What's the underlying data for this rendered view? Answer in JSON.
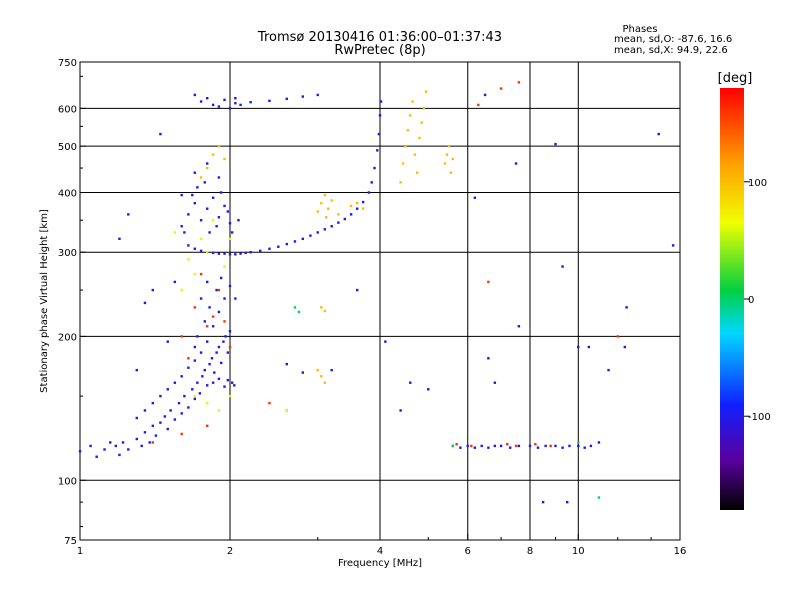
{
  "chart_data": {
    "type": "scatter",
    "title": "Tromsø 20130416 01:36:00–01:37:43",
    "subtitle": "RwPretec (8p)",
    "stats": {
      "heading": "Phases",
      "line_o": "mean, sd,O: -87.6, 16.6",
      "line_x": "mean, sd,X: 94.9, 22.6"
    },
    "xlabel": "Frequency [MHz]",
    "ylabel": "Stationary phase Virtual Height [km]",
    "x_scale": "log",
    "y_scale": "log",
    "xlim": [
      1,
      16
    ],
    "ylim": [
      75,
      750
    ],
    "x_ticks": [
      {
        "v": 1,
        "label": "1"
      },
      {
        "v": 2,
        "label": "2"
      },
      {
        "v": 4,
        "label": "4"
      },
      {
        "v": 6,
        "label": "6"
      },
      {
        "v": 8,
        "label": "8"
      },
      {
        "v": 10,
        "label": "10"
      },
      {
        "v": 16,
        "label": "16"
      }
    ],
    "y_ticks": [
      {
        "v": 75,
        "label": "75"
      },
      {
        "v": 100,
        "label": "100"
      },
      {
        "v": 200,
        "label": "200"
      },
      {
        "v": 300,
        "label": "300"
      },
      {
        "v": 400,
        "label": "400"
      },
      {
        "v": 500,
        "label": "500"
      },
      {
        "v": 600,
        "label": "600"
      },
      {
        "v": 750,
        "label": "750"
      }
    ],
    "x_grid": [
      2,
      4,
      6,
      8,
      10
    ],
    "y_grid": [
      100,
      200,
      300,
      400,
      500,
      600
    ],
    "grid": true,
    "colorbar": {
      "label": "[deg]",
      "range": [
        -180,
        180
      ],
      "ticks": [
        {
          "v": 100,
          "label": "100"
        },
        {
          "v": 0,
          "label": "0"
        },
        {
          "v": -100,
          "label": "-100"
        }
      ]
    },
    "series": [
      {
        "color_value": -100,
        "points": [
          [
            1.0,
            115
          ],
          [
            1.05,
            118
          ],
          [
            1.08,
            112
          ],
          [
            1.12,
            116
          ],
          [
            1.15,
            120
          ],
          [
            1.18,
            118
          ],
          [
            1.2,
            113
          ],
          [
            1.22,
            120
          ],
          [
            1.25,
            116
          ],
          [
            1.3,
            122
          ],
          [
            1.33,
            118
          ],
          [
            1.35,
            126
          ],
          [
            1.38,
            120
          ],
          [
            1.4,
            130
          ],
          [
            1.42,
            124
          ],
          [
            1.45,
            132
          ],
          [
            1.48,
            136
          ],
          [
            1.5,
            128
          ],
          [
            1.52,
            140
          ],
          [
            1.55,
            134
          ],
          [
            1.58,
            145
          ],
          [
            1.6,
            138
          ],
          [
            1.62,
            150
          ],
          [
            1.65,
            142
          ],
          [
            1.68,
            155
          ],
          [
            1.7,
            148
          ],
          [
            1.72,
            160
          ],
          [
            1.74,
            152
          ],
          [
            1.76,
            165
          ],
          [
            1.78,
            170
          ],
          [
            1.8,
            158
          ],
          [
            1.82,
            175
          ],
          [
            1.84,
            180
          ],
          [
            1.86,
            168
          ],
          [
            1.88,
            185
          ],
          [
            1.9,
            190
          ],
          [
            1.92,
            176
          ],
          [
            1.94,
            195
          ],
          [
            1.96,
            200
          ],
          [
            1.98,
            185
          ],
          [
            2.0,
            205
          ],
          [
            2.02,
            160
          ],
          [
            2.04,
            158
          ],
          [
            1.98,
            162
          ],
          [
            1.95,
            157
          ],
          [
            1.9,
            163
          ],
          [
            1.85,
            160
          ],
          [
            1.3,
            135
          ],
          [
            1.35,
            140
          ],
          [
            1.4,
            145
          ],
          [
            1.45,
            150
          ],
          [
            1.5,
            155
          ],
          [
            1.55,
            160
          ],
          [
            1.6,
            165
          ],
          [
            1.65,
            172
          ],
          [
            1.7,
            178
          ],
          [
            1.75,
            185
          ],
          [
            1.8,
            195
          ],
          [
            1.85,
            210
          ],
          [
            1.9,
            225
          ],
          [
            1.95,
            240
          ],
          [
            2.0,
            255
          ],
          [
            2.05,
            240
          ],
          [
            1.72,
            200
          ],
          [
            1.78,
            215
          ],
          [
            1.82,
            230
          ],
          [
            1.88,
            250
          ],
          [
            1.92,
            265
          ],
          [
            1.75,
            240
          ],
          [
            1.8,
            260
          ],
          [
            1.7,
            190
          ],
          [
            1.65,
            310
          ],
          [
            1.7,
            305
          ],
          [
            1.75,
            302
          ],
          [
            1.8,
            300
          ],
          [
            1.85,
            299
          ],
          [
            1.9,
            298
          ],
          [
            1.95,
            298
          ],
          [
            2.0,
            297
          ],
          [
            2.05,
            297
          ],
          [
            2.1,
            298
          ],
          [
            2.15,
            299
          ],
          [
            2.2,
            300
          ],
          [
            2.3,
            302
          ],
          [
            2.4,
            305
          ],
          [
            2.5,
            308
          ],
          [
            2.6,
            312
          ],
          [
            2.7,
            316
          ],
          [
            2.8,
            320
          ],
          [
            2.9,
            325
          ],
          [
            3.0,
            330
          ],
          [
            3.1,
            335
          ],
          [
            3.2,
            340
          ],
          [
            3.3,
            346
          ],
          [
            3.4,
            352
          ],
          [
            3.5,
            360
          ],
          [
            3.6,
            370
          ],
          [
            3.7,
            382
          ],
          [
            3.8,
            400
          ],
          [
            3.85,
            420
          ],
          [
            3.9,
            450
          ],
          [
            3.95,
            490
          ],
          [
            3.98,
            530
          ],
          [
            4.0,
            580
          ],
          [
            4.02,
            620
          ],
          [
            1.6,
            340
          ],
          [
            1.65,
            360
          ],
          [
            1.7,
            380
          ],
          [
            1.75,
            350
          ],
          [
            1.8,
            370
          ],
          [
            1.85,
            390
          ],
          [
            1.9,
            355
          ],
          [
            1.95,
            375
          ],
          [
            2.0,
            345
          ],
          [
            1.62,
            330
          ],
          [
            1.68,
            395
          ],
          [
            1.72,
            410
          ],
          [
            1.78,
            420
          ],
          [
            1.82,
            330
          ],
          [
            1.88,
            340
          ],
          [
            1.92,
            400
          ],
          [
            1.98,
            365
          ],
          [
            2.02,
            330
          ],
          [
            2.08,
            350
          ],
          [
            1.7,
            440
          ],
          [
            1.8,
            460
          ],
          [
            1.9,
            430
          ],
          [
            1.7,
            640
          ],
          [
            1.75,
            620
          ],
          [
            1.8,
            630
          ],
          [
            1.85,
            610
          ],
          [
            1.9,
            605
          ],
          [
            1.95,
            625
          ],
          [
            2.0,
            600
          ],
          [
            2.05,
            615
          ],
          [
            2.1,
            610
          ],
          [
            2.2,
            618
          ],
          [
            2.4,
            622
          ],
          [
            2.6,
            628
          ],
          [
            2.8,
            635
          ],
          [
            3.0,
            640
          ],
          [
            2.05,
            630
          ],
          [
            5.6,
            118
          ],
          [
            5.8,
            117
          ],
          [
            6.0,
            118
          ],
          [
            6.2,
            117
          ],
          [
            6.4,
            118
          ],
          [
            6.6,
            117
          ],
          [
            6.8,
            118
          ],
          [
            7.0,
            118
          ],
          [
            7.3,
            117
          ],
          [
            7.6,
            118
          ],
          [
            8.0,
            118
          ],
          [
            8.3,
            117
          ],
          [
            8.6,
            118
          ],
          [
            9.0,
            118
          ],
          [
            9.3,
            117
          ],
          [
            9.6,
            118
          ],
          [
            10.0,
            118
          ],
          [
            10.3,
            117
          ],
          [
            10.6,
            118
          ],
          [
            11.0,
            120
          ]
        ]
      },
      {
        "color_value": 100,
        "points": [
          [
            3.0,
            365
          ],
          [
            3.05,
            380
          ],
          [
            3.1,
            395
          ],
          [
            3.12,
            355
          ],
          [
            3.15,
            370
          ],
          [
            3.2,
            385
          ],
          [
            3.3,
            360
          ],
          [
            3.5,
            375
          ],
          [
            3.6,
            380
          ],
          [
            3.7,
            370
          ],
          [
            4.4,
            420
          ],
          [
            4.45,
            460
          ],
          [
            4.5,
            500
          ],
          [
            4.55,
            540
          ],
          [
            4.6,
            580
          ],
          [
            4.65,
            620
          ],
          [
            4.7,
            480
          ],
          [
            4.75,
            440
          ],
          [
            4.8,
            520
          ],
          [
            4.85,
            560
          ],
          [
            4.9,
            600
          ],
          [
            4.95,
            650
          ],
          [
            5.4,
            460
          ],
          [
            5.45,
            480
          ],
          [
            5.5,
            500
          ],
          [
            5.55,
            440
          ],
          [
            5.6,
            470
          ],
          [
            1.8,
            450
          ],
          [
            1.85,
            480
          ],
          [
            1.9,
            500
          ],
          [
            1.95,
            470
          ],
          [
            1.75,
            430
          ],
          [
            3.05,
            230
          ],
          [
            3.1,
            226
          ],
          [
            3.0,
            170
          ],
          [
            3.05,
            165
          ],
          [
            3.1,
            160
          ]
        ]
      },
      {
        "color_value": 160,
        "points": [
          [
            1.6,
            200
          ],
          [
            1.7,
            230
          ],
          [
            1.8,
            210
          ],
          [
            1.9,
            250
          ],
          [
            2.0,
            190
          ],
          [
            1.75,
            270
          ],
          [
            1.85,
            220
          ],
          [
            1.65,
            180
          ],
          [
            1.95,
            215
          ],
          [
            1.4,
            120
          ],
          [
            1.6,
            125
          ],
          [
            1.8,
            130
          ],
          [
            2.4,
            145
          ],
          [
            2.6,
            140
          ],
          [
            5.7,
            119
          ],
          [
            6.1,
            118
          ],
          [
            7.2,
            119
          ],
          [
            7.5,
            118
          ],
          [
            8.2,
            119
          ],
          [
            8.8,
            118
          ],
          [
            6.6,
            260
          ],
          [
            7.0,
            660
          ],
          [
            6.3,
            610
          ],
          [
            7.6,
            680
          ],
          [
            12.0,
            200
          ]
        ]
      },
      {
        "color_value": 60,
        "points": [
          [
            1.55,
            330
          ],
          [
            1.65,
            290
          ],
          [
            1.75,
            320
          ],
          [
            1.85,
            350
          ],
          [
            1.95,
            280
          ],
          [
            1.7,
            270
          ],
          [
            1.8,
            300
          ],
          [
            1.6,
            250
          ],
          [
            2.0,
            320
          ],
          [
            1.9,
            140
          ],
          [
            2.0,
            150
          ],
          [
            1.7,
            150
          ],
          [
            1.8,
            145
          ],
          [
            2.6,
            140
          ]
        ]
      },
      {
        "color_value": 0,
        "points": [
          [
            2.7,
            230
          ],
          [
            2.75,
            225
          ],
          [
            5.6,
            118
          ],
          [
            11.0,
            92
          ],
          [
            10.0,
            120
          ]
        ]
      },
      {
        "color_value": -110,
        "points": [
          [
            1.3,
            170
          ],
          [
            1.35,
            235
          ],
          [
            1.4,
            250
          ],
          [
            1.45,
            530
          ],
          [
            1.5,
            195
          ],
          [
            1.55,
            260
          ],
          [
            1.6,
            395
          ],
          [
            1.25,
            360
          ],
          [
            1.2,
            320
          ],
          [
            2.6,
            175
          ],
          [
            2.8,
            168
          ],
          [
            3.2,
            170
          ],
          [
            3.6,
            250
          ],
          [
            4.1,
            195
          ],
          [
            4.4,
            140
          ],
          [
            4.6,
            160
          ],
          [
            5.0,
            155
          ],
          [
            6.2,
            390
          ],
          [
            6.6,
            180
          ],
          [
            6.8,
            160
          ],
          [
            7.6,
            210
          ],
          [
            9.0,
            505
          ],
          [
            9.3,
            280
          ],
          [
            10.0,
            190
          ],
          [
            10.5,
            190
          ],
          [
            11.5,
            170
          ],
          [
            12.4,
            190
          ],
          [
            14.5,
            530
          ],
          [
            15.5,
            310
          ],
          [
            6.5,
            640
          ],
          [
            7.5,
            460
          ],
          [
            8.5,
            90
          ],
          [
            9.5,
            90
          ],
          [
            12.5,
            230
          ]
        ]
      }
    ]
  }
}
